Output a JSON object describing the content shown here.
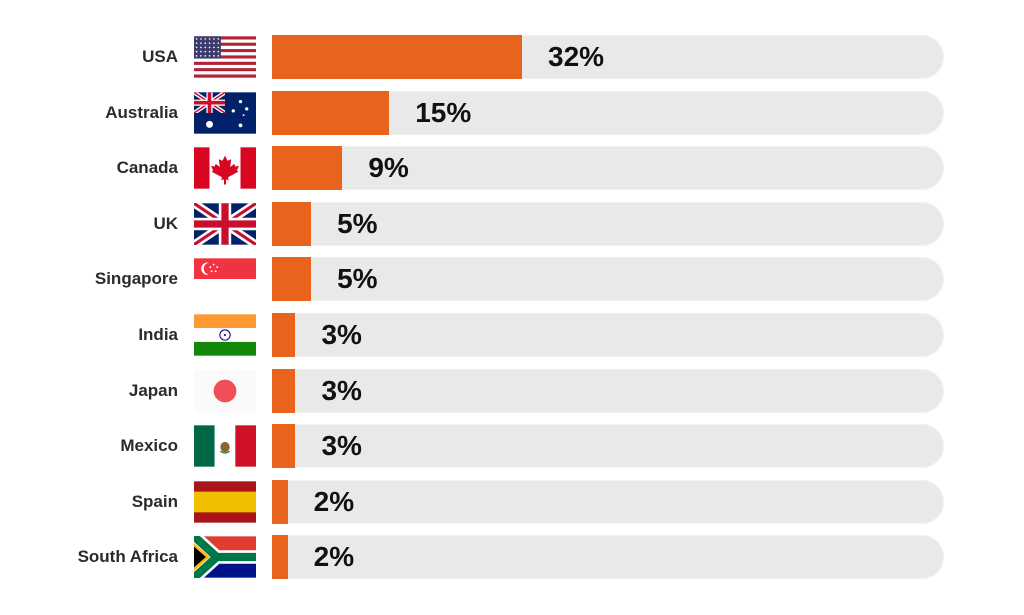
{
  "chart_data": {
    "type": "bar",
    "orientation": "horizontal",
    "title": "",
    "xlabel": "",
    "ylabel": "",
    "categories": [
      "USA",
      "Australia",
      "Canada",
      "UK",
      "Singapore",
      "India",
      "Japan",
      "Mexico",
      "Spain",
      "South Africa"
    ],
    "values": [
      32,
      15,
      9,
      5,
      5,
      3,
      3,
      3,
      2,
      2
    ],
    "value_labels": [
      "32%",
      "15%",
      "9%",
      "5%",
      "5%",
      "3%",
      "3%",
      "3%",
      "2%",
      "2%"
    ],
    "flag_icons": [
      "usa-flag-icon",
      "australia-flag-icon",
      "canada-flag-icon",
      "uk-flag-icon",
      "singapore-flag-icon",
      "india-flag-icon",
      "japan-flag-icon",
      "mexico-flag-icon",
      "spain-flag-icon",
      "south-africa-flag-icon"
    ],
    "xlim": [
      0,
      86
    ],
    "grid": false,
    "legend": "none",
    "colors": {
      "bar": "#e8631c",
      "track": "#e9e9e9",
      "value_text": "#111111",
      "label_text": "#2b2b2b"
    }
  }
}
